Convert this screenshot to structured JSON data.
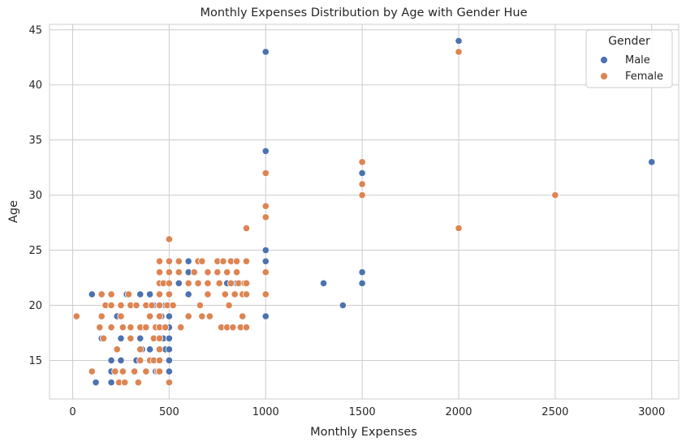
{
  "chart_data": {
    "type": "scatter",
    "title": "Monthly Expenses Distribution by Age with Gender Hue",
    "xlabel": "Monthly Expenses",
    "ylabel": "Age",
    "xlim": [
      -120,
      3140
    ],
    "ylim": [
      11.5,
      45.5
    ],
    "xticks": [
      0,
      500,
      1000,
      1500,
      2000,
      2500,
      3000
    ],
    "yticks": [
      15,
      20,
      25,
      30,
      35,
      40,
      45
    ],
    "grid": true,
    "legend": {
      "title": "Gender",
      "position": "top-right"
    },
    "colors": {
      "Male": "#4c72b0",
      "Female": "#dd8452"
    },
    "series": [
      {
        "name": "Male",
        "points": [
          [
            100,
            21
          ],
          [
            120,
            13
          ],
          [
            150,
            17
          ],
          [
            200,
            15
          ],
          [
            200,
            14
          ],
          [
            200,
            13
          ],
          [
            230,
            19
          ],
          [
            250,
            15
          ],
          [
            250,
            17
          ],
          [
            280,
            21
          ],
          [
            300,
            20
          ],
          [
            330,
            15
          ],
          [
            350,
            21
          ],
          [
            350,
            17
          ],
          [
            360,
            16
          ],
          [
            370,
            18
          ],
          [
            400,
            21
          ],
          [
            400,
            16
          ],
          [
            420,
            20
          ],
          [
            430,
            14
          ],
          [
            450,
            24
          ],
          [
            450,
            21
          ],
          [
            460,
            19
          ],
          [
            470,
            18
          ],
          [
            470,
            17
          ],
          [
            480,
            20
          ],
          [
            480,
            16
          ],
          [
            500,
            23
          ],
          [
            500,
            21
          ],
          [
            500,
            20
          ],
          [
            500,
            19
          ],
          [
            500,
            18
          ],
          [
            500,
            17
          ],
          [
            500,
            16
          ],
          [
            500,
            15
          ],
          [
            500,
            14
          ],
          [
            550,
            22
          ],
          [
            600,
            24
          ],
          [
            600,
            21
          ],
          [
            600,
            23
          ],
          [
            700,
            22
          ],
          [
            800,
            22
          ],
          [
            850,
            22
          ],
          [
            900,
            24
          ],
          [
            1000,
            43
          ],
          [
            1000,
            34
          ],
          [
            1000,
            25
          ],
          [
            1000,
            24
          ],
          [
            1000,
            19
          ],
          [
            1300,
            22
          ],
          [
            1400,
            20
          ],
          [
            1500,
            32
          ],
          [
            1500,
            23
          ],
          [
            1500,
            22
          ],
          [
            2000,
            44
          ],
          [
            3000,
            33
          ]
        ]
      },
      {
        "name": "Female",
        "points": [
          [
            20,
            19
          ],
          [
            100,
            14
          ],
          [
            140,
            18
          ],
          [
            150,
            21
          ],
          [
            150,
            19
          ],
          [
            160,
            17
          ],
          [
            170,
            20
          ],
          [
            200,
            21
          ],
          [
            200,
            20
          ],
          [
            200,
            18
          ],
          [
            220,
            14
          ],
          [
            230,
            16
          ],
          [
            240,
            13
          ],
          [
            250,
            20
          ],
          [
            250,
            19
          ],
          [
            260,
            14
          ],
          [
            260,
            18
          ],
          [
            270,
            13
          ],
          [
            290,
            21
          ],
          [
            300,
            20
          ],
          [
            300,
            17
          ],
          [
            300,
            18
          ],
          [
            320,
            14
          ],
          [
            330,
            20
          ],
          [
            340,
            13
          ],
          [
            350,
            18
          ],
          [
            350,
            15
          ],
          [
            350,
            16
          ],
          [
            380,
            20
          ],
          [
            380,
            18
          ],
          [
            380,
            14
          ],
          [
            400,
            19
          ],
          [
            400,
            15
          ],
          [
            410,
            20
          ],
          [
            420,
            17
          ],
          [
            420,
            15
          ],
          [
            430,
            18
          ],
          [
            440,
            14
          ],
          [
            450,
            24
          ],
          [
            450,
            23
          ],
          [
            450,
            22
          ],
          [
            450,
            21
          ],
          [
            450,
            20
          ],
          [
            450,
            19
          ],
          [
            450,
            18
          ],
          [
            450,
            17
          ],
          [
            450,
            16
          ],
          [
            450,
            15
          ],
          [
            450,
            14
          ],
          [
            470,
            22
          ],
          [
            480,
            18
          ],
          [
            490,
            20
          ],
          [
            500,
            26
          ],
          [
            500,
            24
          ],
          [
            500,
            23
          ],
          [
            500,
            22
          ],
          [
            500,
            21
          ],
          [
            500,
            13
          ],
          [
            520,
            20
          ],
          [
            550,
            24
          ],
          [
            550,
            23
          ],
          [
            560,
            18
          ],
          [
            600,
            19
          ],
          [
            600,
            22
          ],
          [
            630,
            23
          ],
          [
            650,
            24
          ],
          [
            650,
            22
          ],
          [
            660,
            20
          ],
          [
            670,
            24
          ],
          [
            670,
            19
          ],
          [
            700,
            23
          ],
          [
            700,
            22
          ],
          [
            700,
            21
          ],
          [
            710,
            19
          ],
          [
            750,
            24
          ],
          [
            750,
            23
          ],
          [
            760,
            22
          ],
          [
            770,
            18
          ],
          [
            780,
            24
          ],
          [
            790,
            21
          ],
          [
            800,
            23
          ],
          [
            800,
            18
          ],
          [
            810,
            20
          ],
          [
            820,
            24
          ],
          [
            820,
            22
          ],
          [
            830,
            18
          ],
          [
            840,
            21
          ],
          [
            850,
            24
          ],
          [
            850,
            23
          ],
          [
            860,
            22
          ],
          [
            870,
            18
          ],
          [
            880,
            21
          ],
          [
            880,
            19
          ],
          [
            890,
            22
          ],
          [
            900,
            27
          ],
          [
            900,
            24
          ],
          [
            900,
            22
          ],
          [
            900,
            21
          ],
          [
            900,
            18
          ],
          [
            1000,
            32
          ],
          [
            1000,
            29
          ],
          [
            1000,
            28
          ],
          [
            1000,
            23
          ],
          [
            1000,
            21
          ],
          [
            1500,
            33
          ],
          [
            1500,
            31
          ],
          [
            1500,
            30
          ],
          [
            2000,
            43
          ],
          [
            2000,
            27
          ],
          [
            2500,
            30
          ]
        ]
      }
    ]
  }
}
